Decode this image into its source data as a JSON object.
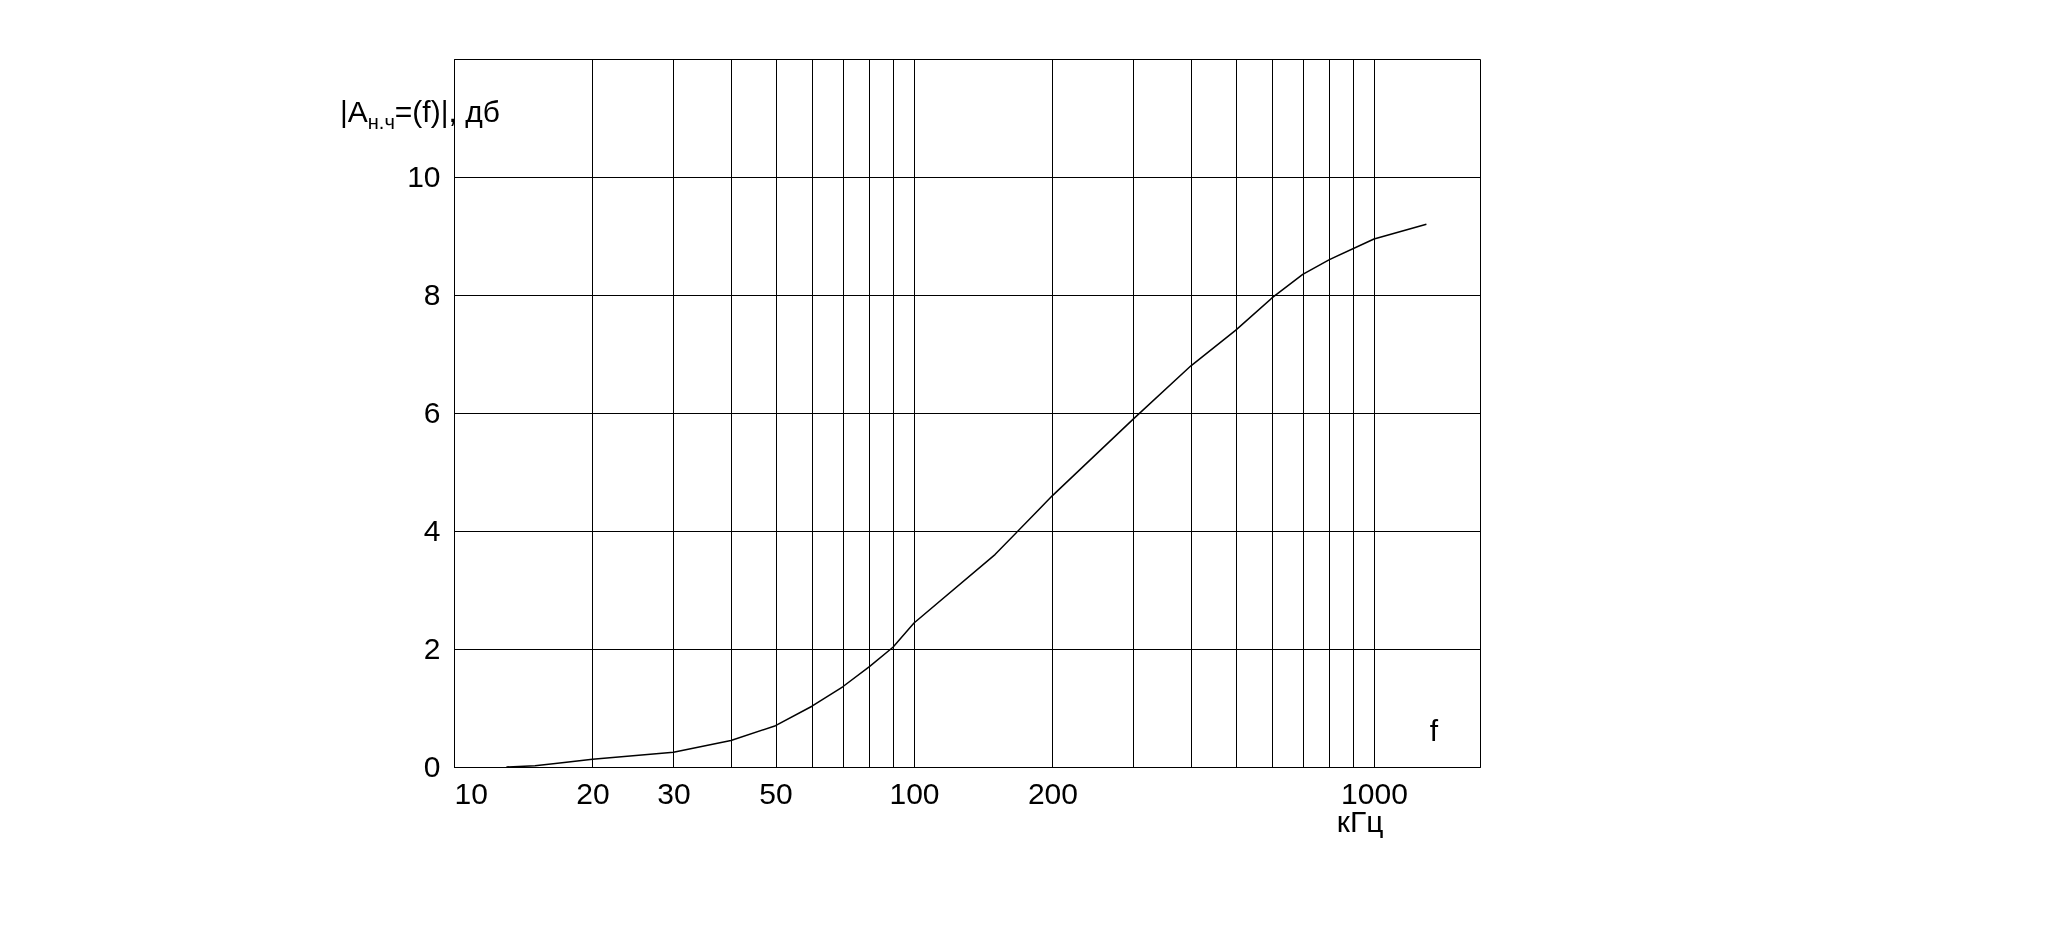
{
  "chart_data": {
    "type": "line",
    "ylabel": "|A$_{н.ч}$=(f)|, дб",
    "xlabel": "кГц",
    "annotations": [
      "f"
    ],
    "log": "x",
    "grid": true,
    "legend": false,
    "marker": "none",
    "line_style": "solid",
    "x": [
      13,
      15,
      20,
      30,
      40,
      50,
      60,
      70,
      80,
      90,
      100,
      150,
      200,
      300,
      400,
      500,
      600,
      700,
      800,
      1000,
      1300
    ],
    "series": [
      {
        "color": "#000000",
        "values": [
          0,
          0.02,
          0.13,
          0.25,
          0.45,
          0.7,
          1.03,
          1.36,
          1.7,
          2.03,
          2.44,
          3.6,
          4.6,
          5.9,
          6.8,
          7.4,
          7.95,
          8.35,
          8.6,
          8.95,
          9.2
        ]
      }
    ],
    "xlim": [
      10,
      1700
    ],
    "xticks": [
      10,
      20,
      30,
      {
        "value": 40,
        "label": null
      },
      50,
      {
        "value": 60,
        "label": null
      },
      {
        "value": 70,
        "label": null
      },
      {
        "value": 80,
        "label": null
      },
      {
        "value": 90,
        "label": null
      },
      100,
      200,
      {
        "value": 300,
        "label": null
      },
      {
        "value": 400,
        "label": null
      },
      {
        "value": 500,
        "label": null
      },
      {
        "value": 600,
        "label": null
      },
      {
        "value": 700,
        "label": null
      },
      {
        "value": 800,
        "label": null
      },
      {
        "value": 900,
        "label": null
      },
      1000
    ],
    "ylim": [
      0,
      12
    ],
    "yticks": [
      0,
      2,
      4,
      6,
      8,
      10
    ]
  }
}
